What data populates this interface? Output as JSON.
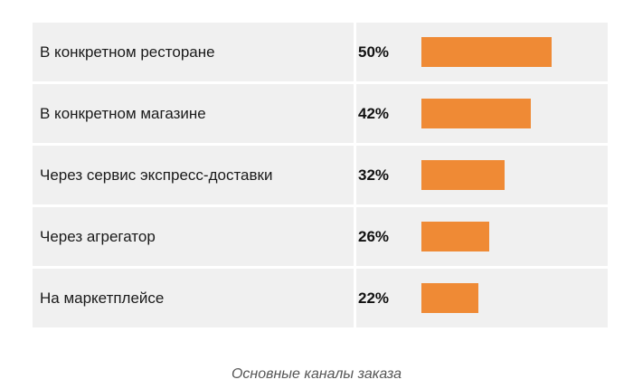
{
  "chart_data": {
    "type": "bar",
    "orientation": "horizontal",
    "categories": [
      "В конкретном ресторане",
      "В конкретном магазине",
      "Через сервис экспресс-доставки",
      "Через агрегатор",
      "На маркетплейсе"
    ],
    "values": [
      50,
      42,
      32,
      26,
      22
    ],
    "value_labels": [
      "50%",
      "42%",
      "32%",
      "26%",
      "22%"
    ],
    "unit": "%",
    "bar_color": "#ef8a35",
    "row_background": "#f0f0f0"
  },
  "caption": "Основные каналы заказа"
}
